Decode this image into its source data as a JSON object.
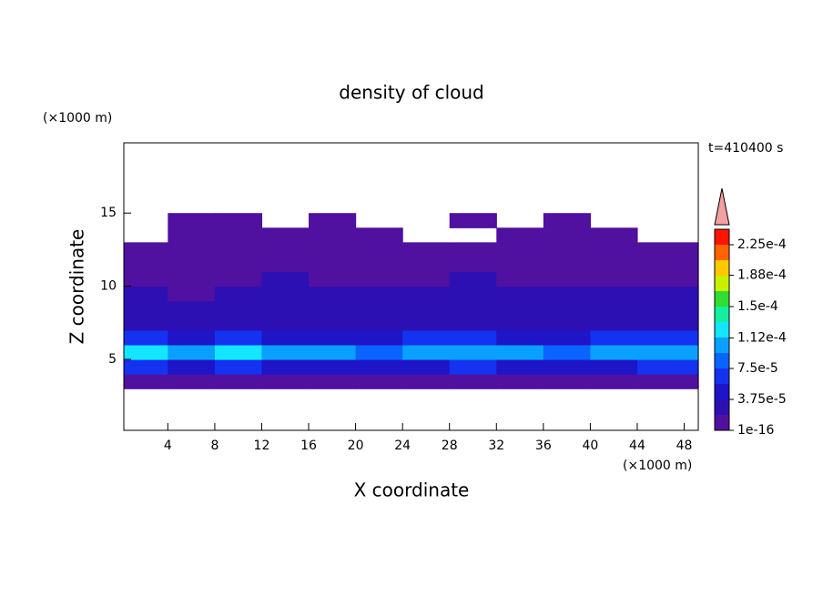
{
  "chart_data": {
    "type": "contour",
    "title": "density of cloud",
    "xlabel": "X coordinate",
    "ylabel": "Z coordinate",
    "x_unit": "(×1000 m)",
    "y_unit": "(×1000 m)",
    "annotation": "t=410400 s",
    "xlim": [
      0.25,
      49.2
    ],
    "ylim": [
      0.15,
      19.8
    ],
    "xticks": [
      4,
      8,
      12,
      16,
      20,
      24,
      28,
      32,
      36,
      40,
      44,
      48
    ],
    "yticks": [
      5,
      10,
      15
    ],
    "x": [
      2,
      6,
      10,
      14,
      18,
      22,
      26,
      30,
      34,
      38,
      42,
      46
    ],
    "z": [
      3.5,
      4.5,
      5.5,
      6.5,
      7.5,
      8.5,
      9.5,
      10.5,
      11.5,
      12.5,
      13.5,
      14.5
    ],
    "values": [
      [
        1e-05,
        1e-05,
        1e-05,
        1e-05,
        1e-05,
        1e-05,
        1e-05,
        1e-05,
        1e-05,
        1e-05,
        1e-05,
        1e-05
      ],
      [
        6e-05,
        5e-05,
        5.8e-05,
        5.2e-05,
        5e-05,
        4.5e-05,
        5.5e-05,
        5.8e-05,
        5e-05,
        4.6e-05,
        5.6e-05,
        6e-05
      ],
      [
        0.000125,
        0.000105,
        0.000115,
        0.00011,
        9.8e-05,
        8.5e-05,
        9.6e-05,
        0.00011,
        0.0001,
        9e-05,
        0.000105,
        0.000112
      ],
      [
        6.5e-05,
        5.5e-05,
        6e-05,
        5.5e-05,
        5e-05,
        4.8e-05,
        6e-05,
        6.2e-05,
        5.4e-05,
        5e-05,
        6e-05,
        6.5e-05
      ],
      [
        3.5e-05,
        3e-05,
        3.2e-05,
        3e-05,
        3.3e-05,
        2.8e-05,
        3e-05,
        3.2e-05,
        3e-05,
        2.8e-05,
        3.2e-05,
        3.5e-05
      ],
      [
        2.6e-05,
        2.2e-05,
        2.4e-05,
        2.5e-05,
        2.3e-05,
        2.2e-05,
        2.4e-05,
        2.6e-05,
        2.4e-05,
        2.2e-05,
        2.5e-05,
        2.6e-05
      ],
      [
        2e-05,
        1.7e-05,
        2.1e-05,
        2.3e-05,
        2.1e-05,
        2e-05,
        2.1e-05,
        2.3e-05,
        2.2e-05,
        2e-05,
        2.2e-05,
        2.1e-05
      ],
      [
        1.6e-05,
        1.4e-05,
        1.5e-05,
        1.9e-05,
        1.7e-05,
        1.6e-05,
        1.7e-05,
        1.9e-05,
        1.8e-05,
        1.6e-05,
        1.7e-05,
        1.6e-05
      ],
      [
        1.2e-05,
        1e-05,
        1e-05,
        1.1e-05,
        1.1e-05,
        1e-05,
        1e-05,
        1.1e-05,
        1.1e-05,
        1e-05,
        1e-05,
        1.2e-05
      ],
      [
        8e-06,
        8e-06,
        8e-06,
        8e-06,
        8e-06,
        8e-06,
        8e-06,
        8e-06,
        8e-06,
        8e-06,
        8e-06,
        8e-06
      ],
      [
        null,
        5e-06,
        5e-06,
        5e-06,
        5e-06,
        5e-06,
        null,
        null,
        5e-06,
        5e-06,
        5e-06,
        null
      ],
      [
        null,
        5e-06,
        5e-06,
        null,
        5e-06,
        null,
        null,
        5e-06,
        null,
        5e-06,
        null,
        null
      ]
    ],
    "clim": [
      1e-16,
      0.00024375
    ],
    "colors": [
      "#5010a0",
      "#2d10b4",
      "#1e14c8",
      "#1432f0",
      "#0a64ff",
      "#0aa0ff",
      "#14e6ff",
      "#14f0a0",
      "#32dc32",
      "#c8f000",
      "#ffc800",
      "#ff6400",
      "#ff1400"
    ],
    "colorbar_ticks": [
      {
        "value": 1e-16,
        "label": "1e-16"
      },
      {
        "value": 3.75e-05,
        "label": "3.75e-5"
      },
      {
        "value": 7.5e-05,
        "label": "7.5e-5"
      },
      {
        "value": 0.000112,
        "label": "1.12e-4"
      },
      {
        "value": 0.00015,
        "label": "1.5e-4"
      },
      {
        "value": 0.000188,
        "label": "1.88e-4"
      },
      {
        "value": 0.000225,
        "label": "2.25e-4"
      }
    ]
  }
}
